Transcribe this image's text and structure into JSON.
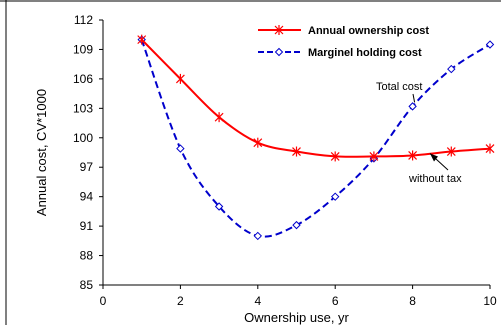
{
  "chart_data": {
    "type": "line",
    "title": "",
    "xlabel": "Ownership use, yr",
    "ylabel": "Annual cost, CV*1000",
    "xlim": [
      0,
      10
    ],
    "ylim": [
      85,
      112
    ],
    "x_ticks": [
      0,
      2,
      4,
      6,
      8,
      10
    ],
    "y_ticks": [
      85,
      88,
      91,
      94,
      97,
      100,
      103,
      106,
      109,
      112
    ],
    "grid": false,
    "legend_position": "top-right",
    "series": [
      {
        "name": "Annual ownership cost",
        "color": "#ff0000",
        "line_style": "solid",
        "marker": "asterisk",
        "x": [
          1,
          2,
          3,
          4,
          5,
          6,
          7,
          8,
          9,
          10
        ],
        "y": [
          110,
          106,
          102.1,
          99.5,
          98.6,
          98.1,
          98.1,
          98.2,
          98.6,
          98.9
        ]
      },
      {
        "name": "Marginel holding cost",
        "color": "#0000cc",
        "line_style": "dashed",
        "marker": "diamond",
        "x": [
          1,
          2,
          3,
          4,
          5,
          6,
          7,
          8,
          9,
          10
        ],
        "y": [
          110,
          98.9,
          93,
          90,
          91.1,
          94,
          97.9,
          103.2,
          107,
          109.5
        ]
      }
    ],
    "annotations": [
      {
        "text": "Total cost",
        "target_series": 1,
        "target_x": 8
      },
      {
        "text": "without tax",
        "target_series": 0,
        "target_x": 8
      }
    ]
  }
}
